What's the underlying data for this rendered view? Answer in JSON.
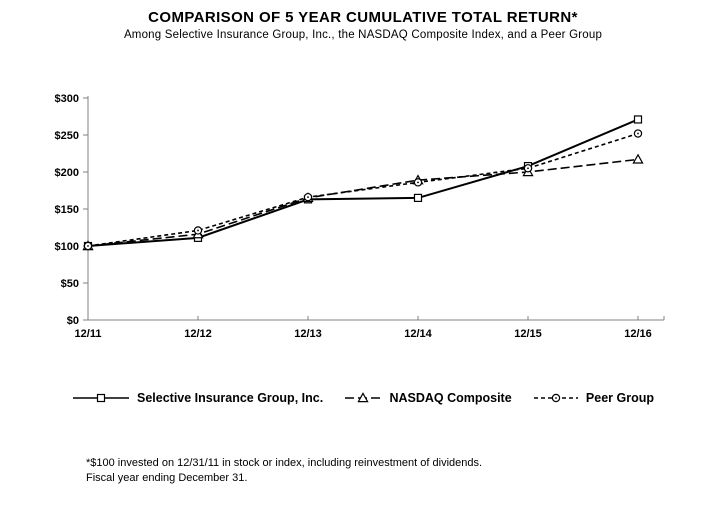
{
  "header": {
    "title": "COMPARISON OF 5 YEAR CUMULATIVE TOTAL RETURN*",
    "subtitle": "Among Selective Insurance Group, Inc., the NASDAQ Composite Index, and a Peer Group"
  },
  "chart_data": {
    "type": "line",
    "categories": [
      "12/11",
      "12/12",
      "12/13",
      "12/14",
      "12/15",
      "12/16"
    ],
    "series": [
      {
        "name": "Selective Insurance Group, Inc.",
        "marker": "square",
        "line_style": "solid",
        "values": [
          100,
          111,
          163,
          165,
          208,
          271
        ]
      },
      {
        "name": "NASDAQ Composite",
        "marker": "triangle",
        "line_style": "long-dash",
        "values": [
          100,
          116,
          165,
          189,
          200,
          217
        ]
      },
      {
        "name": "Peer Group",
        "marker": "circle",
        "line_style": "short-dash",
        "values": [
          100,
          121,
          166,
          186,
          205,
          252
        ]
      }
    ],
    "title": "COMPARISON OF 5 YEAR CUMULATIVE TOTAL RETURN*",
    "xlabel": "",
    "ylabel": "",
    "ylim": [
      0,
      300
    ],
    "ytick_step": 50,
    "ytick_labels": [
      "$0",
      "$50",
      "$100",
      "$150",
      "$200",
      "$250",
      "$300"
    ],
    "grid": false,
    "legend_position": "bottom",
    "line_color": "#000000",
    "axis_color": "#808080"
  },
  "footnote": {
    "line1": "*$100 invested on 12/31/11 in stock or index, including reinvestment  of dividends.",
    "line2": "Fiscal year ending December 31."
  }
}
